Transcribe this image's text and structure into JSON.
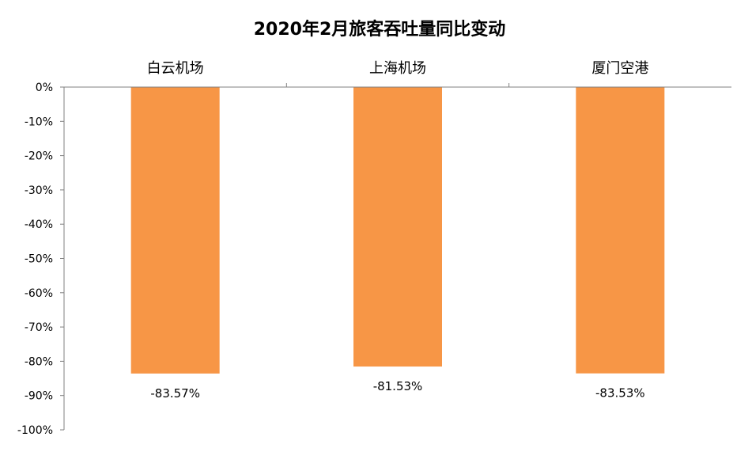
{
  "chart_data": {
    "type": "bar",
    "title": "2020年2月旅客吞吐量同比变动",
    "xlabel": "",
    "ylabel": "",
    "categories": [
      "白云机场",
      "上海机场",
      "厦门空港"
    ],
    "values": [
      -83.57,
      -81.53,
      -83.53
    ],
    "value_labels": [
      "-83.57%",
      "-81.53%",
      "-83.53%"
    ],
    "ylim": [
      -100,
      0
    ],
    "y_ticks": [
      0,
      -10,
      -20,
      -30,
      -40,
      -50,
      -60,
      -70,
      -80,
      -90,
      -100
    ],
    "y_tick_labels": [
      "0%",
      "-10%",
      "-20%",
      "-30%",
      "-40%",
      "-50%",
      "-60%",
      "-70%",
      "-80%",
      "-90%",
      "-100%"
    ],
    "category_axis_position": "top",
    "grid": false,
    "legend": "none",
    "bar_color": "#F79646",
    "axis_color": "#808080"
  }
}
